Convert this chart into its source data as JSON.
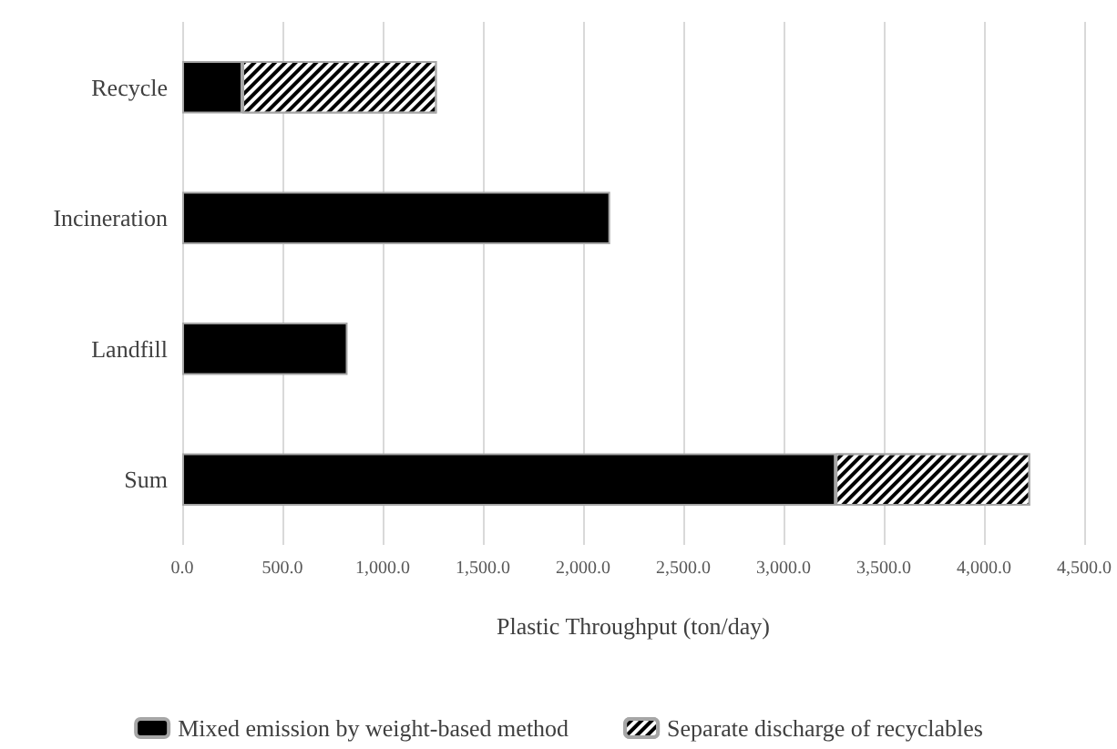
{
  "chart_data": {
    "type": "bar",
    "orientation": "horizontal",
    "stacked": true,
    "categories": [
      "Recycle",
      "Incineration",
      "Landfill",
      "Sum"
    ],
    "series": [
      {
        "name": "Mixed emission by weight-based method",
        "color": "#000000",
        "values": [
          300,
          2135,
          825,
          3260
        ]
      },
      {
        "name": "Separate discharge of recyclables",
        "color": "#000000",
        "values": [
          970,
          null,
          null,
          970
        ]
      }
    ],
    "xlabel": "Plastic Throughput (ton/day)",
    "xlim": [
      0,
      4500
    ],
    "xticks": [
      {
        "value": 0,
        "label": "0.0"
      },
      {
        "value": 500,
        "label": "500.0"
      },
      {
        "value": 1000,
        "label": "1,000.0"
      },
      {
        "value": 1500,
        "label": "1,500.0"
      },
      {
        "value": 2000,
        "label": "2,000.0"
      },
      {
        "value": 2500,
        "label": "2,500.0"
      },
      {
        "value": 3000,
        "label": "3,000.0"
      },
      {
        "value": 3500,
        "label": "3,500.0"
      },
      {
        "value": 4000,
        "label": "4,000.0"
      },
      {
        "value": 4500,
        "label": "4,500.0"
      }
    ],
    "grid": "x",
    "legend": "bottom"
  }
}
